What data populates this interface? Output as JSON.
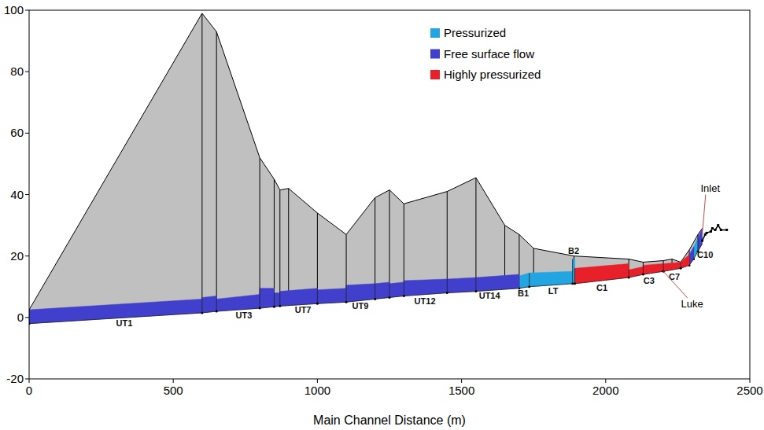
{
  "chart_data": {
    "type": "profile",
    "xlabel": "Main Channel Distance (m)",
    "xlim": [
      0,
      2500
    ],
    "xticks": [
      0,
      500,
      1000,
      1500,
      2000,
      2500
    ],
    "ylim": [
      -20,
      100
    ],
    "yticks": [
      -20,
      0,
      20,
      40,
      60,
      80,
      100
    ],
    "grid": false,
    "legend": "top",
    "ground": {
      "color": "#c0c0c0",
      "x": [
        0,
        600,
        650,
        800,
        850,
        870,
        900,
        1000,
        1100,
        1200,
        1250,
        1300,
        1450,
        1550,
        1650,
        1700,
        1750,
        1890,
        2080,
        2130,
        2200,
        2230,
        2260,
        2290,
        2320,
        2335
      ],
      "y": [
        2.5,
        99,
        93,
        52,
        45,
        41.5,
        42,
        34,
        27,
        39,
        41.5,
        37,
        41,
        45.5,
        30,
        27,
        22.5,
        20,
        19,
        18,
        18.5,
        19,
        18,
        22,
        27,
        29
      ]
    },
    "inlet_structure": {
      "x": [
        2335,
        2345,
        2350,
        2365,
        2370,
        2380,
        2390,
        2400,
        2420
      ],
      "y": [
        25,
        27,
        27.5,
        28,
        29,
        28.5,
        30,
        28.5,
        28.5
      ]
    },
    "series": [
      {
        "name": "Pressurized",
        "color": "#22a5e0",
        "segments": [
          {
            "x": [
              1700,
              1735
            ],
            "bottom": [
              9.5,
              10
            ],
            "top": [
              13.5,
              14.5
            ]
          },
          {
            "x": [
              1735,
              1885
            ],
            "bottom": [
              10,
              11
            ],
            "top": [
              14.5,
              15
            ]
          },
          {
            "x": [
              1885,
              1893
            ],
            "bottom": [
              11,
              11
            ],
            "top": [
              19,
              19
            ]
          },
          {
            "x": [
              2305,
              2320
            ],
            "bottom": [
              19,
              21.5
            ],
            "top": [
              23,
              26
            ]
          }
        ]
      },
      {
        "name": "Free surface flow",
        "color": "#4040cc",
        "segments": [
          {
            "x": [
              0,
              600
            ],
            "bottom": [
              -2,
              1.5
            ],
            "top": [
              2.5,
              6
            ]
          },
          {
            "x": [
              600,
              650
            ],
            "bottom": [
              1.5,
              2
            ],
            "top": [
              6.5,
              7
            ]
          },
          {
            "x": [
              650,
              800
            ],
            "bottom": [
              2,
              3
            ],
            "top": [
              6,
              7.5
            ]
          },
          {
            "x": [
              800,
              850
            ],
            "bottom": [
              3,
              3.5
            ],
            "top": [
              9.5,
              9.5
            ]
          },
          {
            "x": [
              850,
              870
            ],
            "bottom": [
              3.5,
              3.7
            ],
            "top": [
              8,
              8
            ]
          },
          {
            "x": [
              870,
              1000
            ],
            "bottom": [
              3.7,
              4.5
            ],
            "top": [
              8.5,
              9.5
            ]
          },
          {
            "x": [
              1000,
              1100
            ],
            "bottom": [
              4.5,
              5
            ],
            "top": [
              9,
              9.5
            ]
          },
          {
            "x": [
              1100,
              1200
            ],
            "bottom": [
              5,
              6
            ],
            "top": [
              10.5,
              11
            ]
          },
          {
            "x": [
              1200,
              1250
            ],
            "bottom": [
              6,
              6.5
            ],
            "top": [
              11,
              11.5
            ]
          },
          {
            "x": [
              1250,
              1300
            ],
            "bottom": [
              6.5,
              7
            ],
            "top": [
              11,
              11.5
            ]
          },
          {
            "x": [
              1300,
              1450
            ],
            "bottom": [
              7,
              8
            ],
            "top": [
              12,
              12.5
            ]
          },
          {
            "x": [
              1450,
              1550
            ],
            "bottom": [
              8,
              8.5
            ],
            "top": [
              12.5,
              13
            ]
          },
          {
            "x": [
              1550,
              1700
            ],
            "bottom": [
              8.5,
              9.5
            ],
            "top": [
              13,
              14
            ]
          },
          {
            "x": [
              2290,
              2305
            ],
            "bottom": [
              17,
              19
            ],
            "top": [
              20.5,
              23
            ]
          },
          {
            "x": [
              2320,
              2335
            ],
            "bottom": [
              21.5,
              24
            ],
            "top": [
              26,
              29
            ]
          }
        ]
      },
      {
        "name": "Highly pressurized",
        "color": "#e8202a",
        "segments": [
          {
            "x": [
              1893,
              2080
            ],
            "bottom": [
              11,
              13
            ],
            "top": [
              16,
              17.5
            ]
          },
          {
            "x": [
              2080,
              2130
            ],
            "bottom": [
              13,
              14
            ],
            "top": [
              15.5,
              16.5
            ]
          },
          {
            "x": [
              2130,
              2200
            ],
            "bottom": [
              14,
              15
            ],
            "top": [
              17,
              17.5
            ]
          },
          {
            "x": [
              2200,
              2260
            ],
            "bottom": [
              15,
              16
            ],
            "top": [
              17.5,
              18
            ]
          },
          {
            "x": [
              2260,
              2290
            ],
            "bottom": [
              16,
              17
            ],
            "top": [
              18,
              20.5
            ]
          }
        ]
      }
    ],
    "labels": [
      {
        "text": "UT1",
        "x": 330,
        "y": -1.8
      },
      {
        "text": "UT3",
        "x": 745,
        "y": 0.8
      },
      {
        "text": "UT7",
        "x": 950,
        "y": 2.4
      },
      {
        "text": "UT9",
        "x": 1149,
        "y": 3.8
      },
      {
        "text": "UT12",
        "x": 1373,
        "y": 5.4
      },
      {
        "text": "UT14",
        "x": 1597,
        "y": 7
      },
      {
        "text": "B1",
        "x": 1714,
        "y": 8
      },
      {
        "text": "LT",
        "x": 1818,
        "y": 8.6
      },
      {
        "text": "C1",
        "x": 1987,
        "y": 9.6
      },
      {
        "text": "C3",
        "x": 2150,
        "y": 12
      },
      {
        "text": "C7",
        "x": 2238,
        "y": 13.3
      },
      {
        "text": "C10",
        "x": 2345,
        "y": 20.5
      },
      {
        "text": "B2",
        "x": 1889,
        "y": 21.8
      }
    ],
    "annotations": [
      {
        "text": "Inlet",
        "x": 2363,
        "y": 41,
        "target_x": 2335,
        "target_y": 27
      },
      {
        "text": "Luke",
        "x": 2300,
        "y": 3.3,
        "target_x": 2200,
        "target_y": 15
      }
    ]
  }
}
